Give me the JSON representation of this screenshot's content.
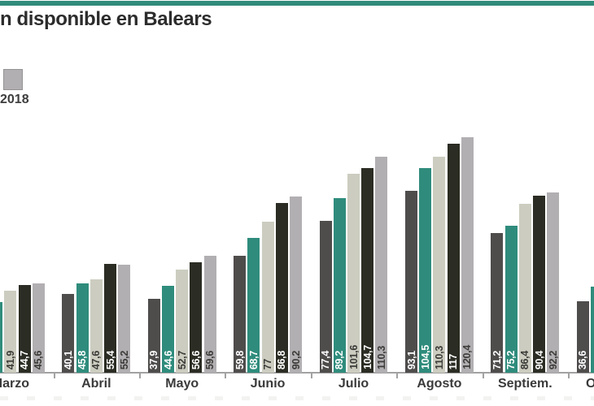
{
  "accent_color": "#318b7a",
  "title": "n disponible en Balears",
  "legend": {
    "items": [
      {
        "label": "2018",
        "color": "#b2afb2"
      }
    ]
  },
  "chart_data": {
    "type": "bar",
    "title": "n disponible en Balears",
    "categories": [
      "Marzo",
      "Abril",
      "Mayo",
      "Junio",
      "Julio",
      "Agosto",
      "Septiem.",
      "Octubre"
    ],
    "series": [
      {
        "name": "",
        "color": "#4f4c4c",
        "label_color": "#ffffff",
        "values": [
          null,
          40.1,
          37.9,
          59.8,
          77.4,
          93.1,
          71.2,
          36.6
        ],
        "labels": [
          "",
          "40,1",
          "37,9",
          "59,8",
          "77,4",
          "93,1",
          "71,2",
          "36,6"
        ]
      },
      {
        "name": "",
        "color": "#2f8c7c",
        "label_color": "#ffffff",
        "values": [
          36,
          45.8,
          44.6,
          68.7,
          89.2,
          104.5,
          75.2,
          44
        ],
        "labels": [
          "",
          "45,8",
          "44,6",
          "68,7",
          "89,2",
          "104,5",
          "75,2",
          ""
        ]
      },
      {
        "name": "",
        "color": "#cccdc0",
        "label_color": "#3b3b38",
        "values": [
          41.9,
          47.6,
          52.7,
          77,
          101.6,
          110.3,
          86.4,
          null
        ],
        "labels": [
          "41,9",
          "47,6",
          "52,7",
          "77",
          "101,6",
          "110,3",
          "86,4",
          ""
        ]
      },
      {
        "name": "",
        "color": "#2b2c23",
        "label_color": "#ffffff",
        "values": [
          44.7,
          55.4,
          56.6,
          86.8,
          104.7,
          117,
          90.4,
          null
        ],
        "labels": [
          "44,7",
          "55,4",
          "56,6",
          "86,8",
          "104,7",
          "117",
          "90,4",
          ""
        ]
      },
      {
        "name": "2018",
        "color": "#b2afb2",
        "label_color": "#3b3b38",
        "values": [
          45.6,
          55.2,
          59.6,
          90.2,
          110.3,
          120.4,
          92.2,
          null
        ],
        "labels": [
          "45,6",
          "55,2",
          "59,6",
          "90,2",
          "110,3",
          "120,4",
          "92,2",
          ""
        ]
      }
    ],
    "ylim": [
      0,
      125
    ],
    "grid": false,
    "y_axis_visible": false,
    "legend_position": "top-left",
    "value_label_style": "rotated-at-bar-base"
  }
}
